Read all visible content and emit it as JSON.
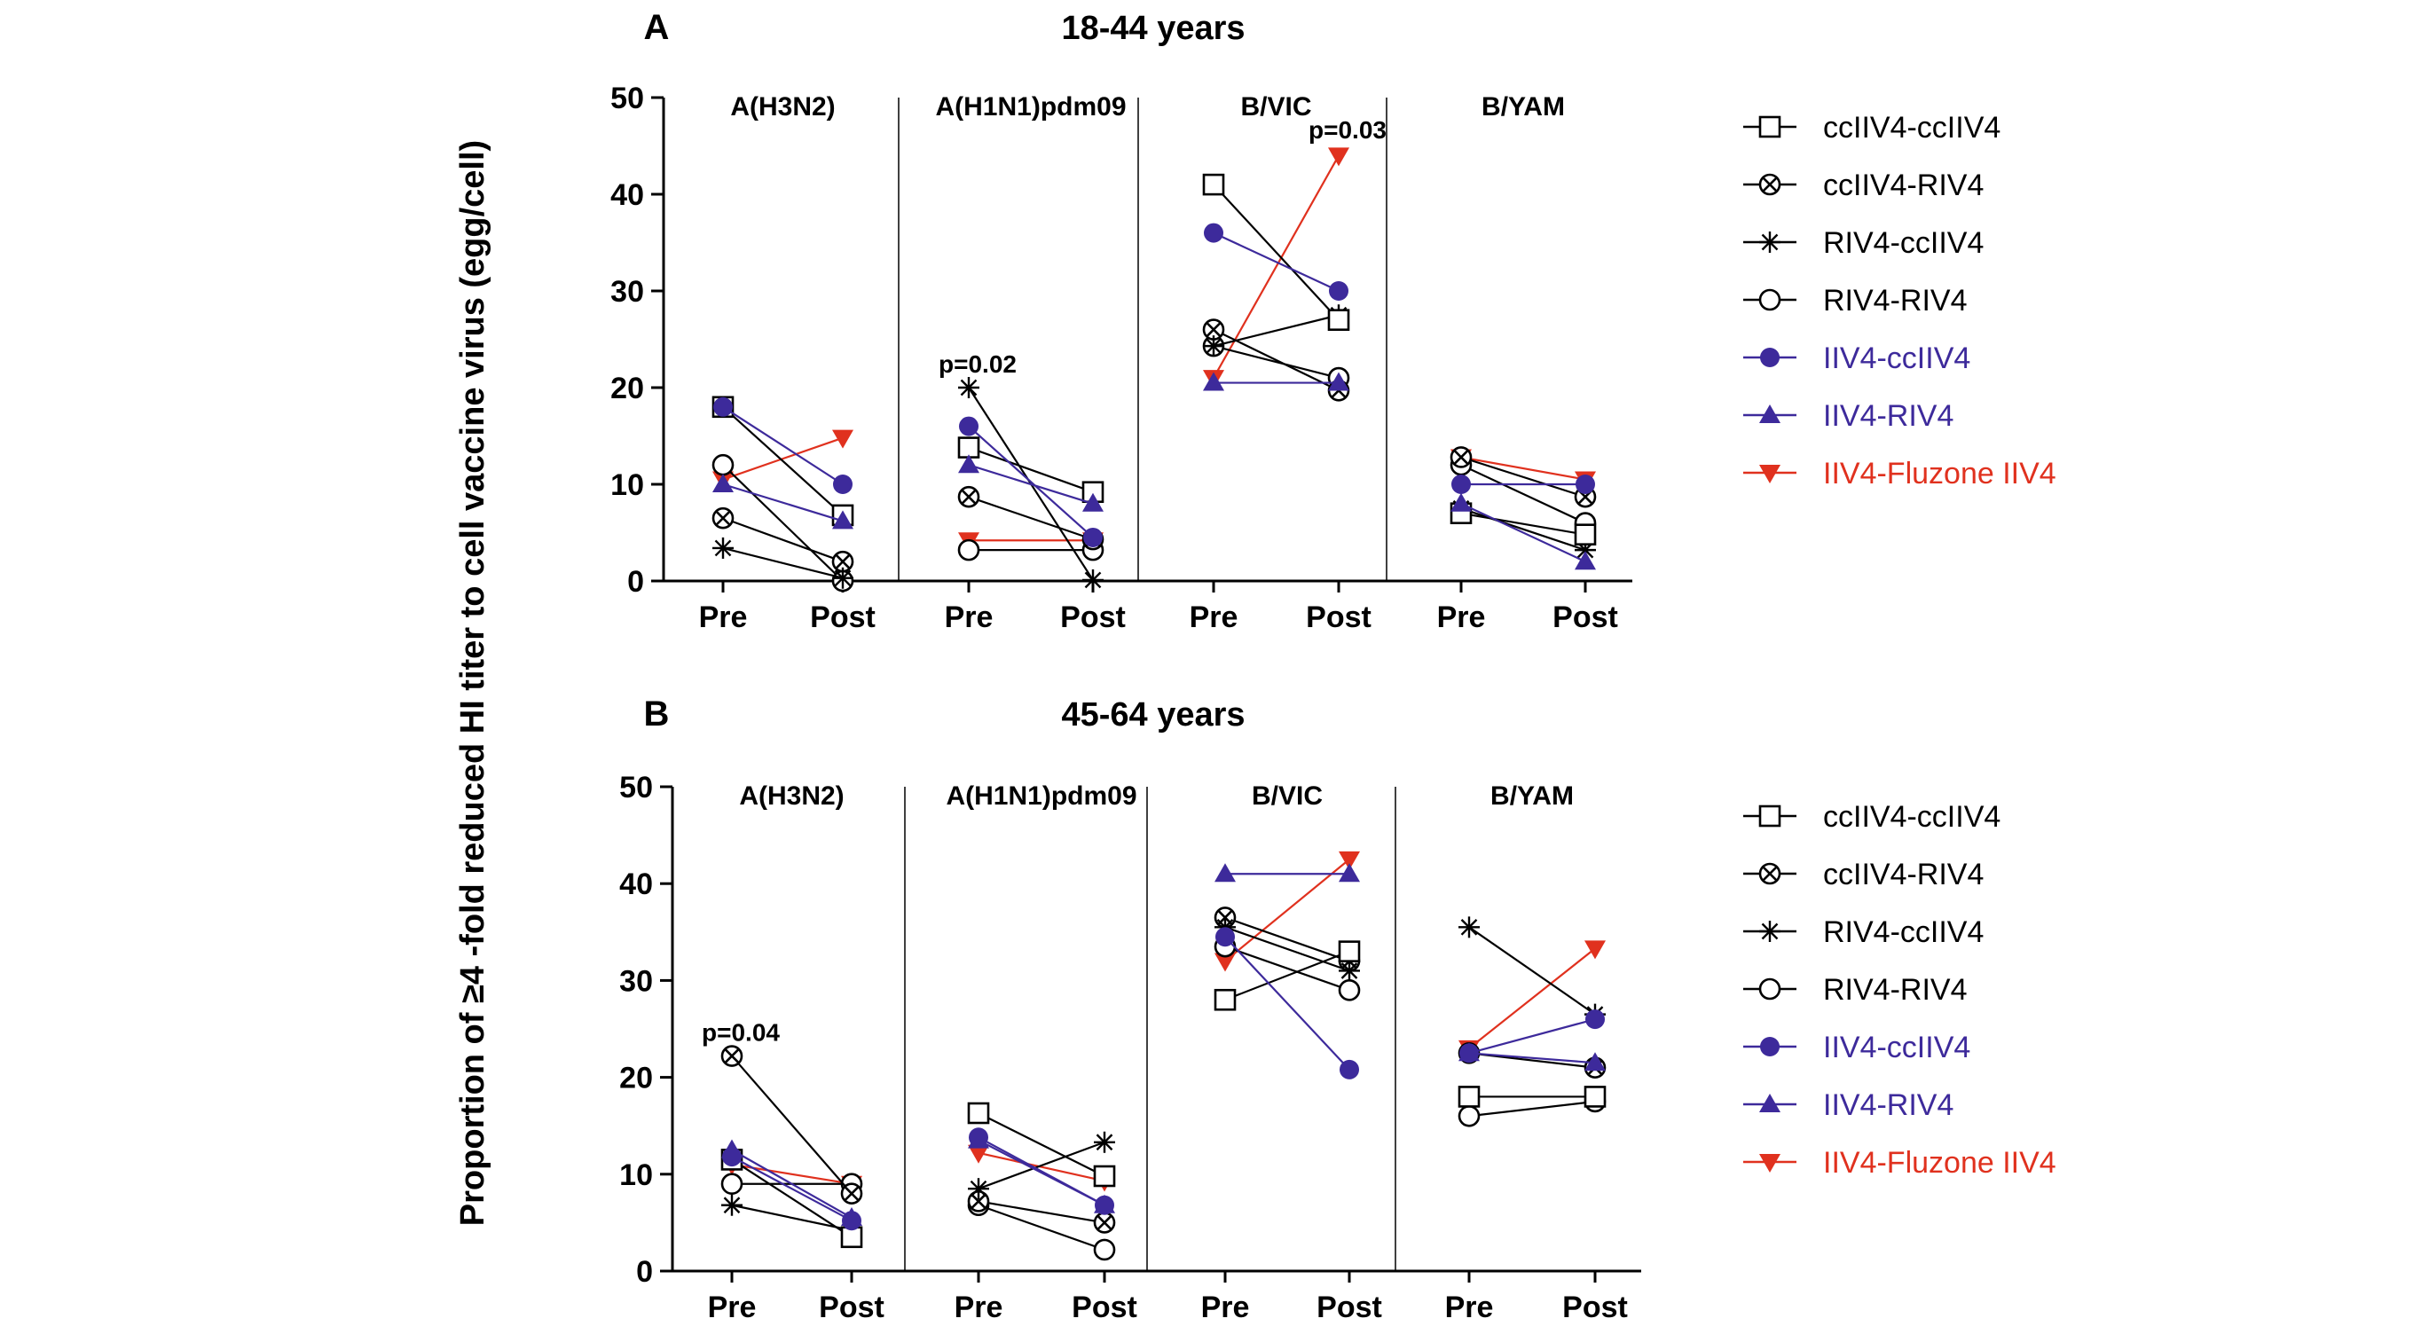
{
  "figure": {
    "ylabel": "Proportion of ≥4 -fold reduced HI titer to cell vaccine virus (egg/cell)"
  },
  "legend": [
    {
      "name": "ccIIV4-ccIIV4",
      "color": "#000000",
      "marker": "square-open"
    },
    {
      "name": "ccIIV4-RIV4",
      "color": "#000000",
      "marker": "circle-cross"
    },
    {
      "name": "RIV4-ccIIV4",
      "color": "#000000",
      "marker": "asterisk"
    },
    {
      "name": "RIV4-RIV4",
      "color": "#000000",
      "marker": "circle-open"
    },
    {
      "name": "IIV4-ccIIV4",
      "color": "#3D2A9B",
      "marker": "circle-filled"
    },
    {
      "name": "IIV4-RIV4",
      "color": "#3D2A9B",
      "marker": "triangle-up-filled"
    },
    {
      "name": "IIV4-Fluzone IIV4",
      "color": "#E0311E",
      "marker": "triangle-down-filled"
    }
  ],
  "chart_data": [
    {
      "type": "line",
      "panel_letter": "A",
      "title": "18-44 years",
      "ylim": [
        0,
        50
      ],
      "yticks": [
        0,
        10,
        20,
        30,
        40,
        50
      ],
      "x_categories": [
        "Pre",
        "Post"
      ],
      "groups": [
        {
          "name": "A(H3N2)",
          "series": {
            "ccIIV4-ccIIV4": [
              18,
              6.8
            ],
            "ccIIV4-RIV4": [
              6.5,
              2
            ],
            "RIV4-ccIIV4": [
              3.4,
              0.3
            ],
            "RIV4-RIV4": [
              12,
              0
            ],
            "IIV4-ccIIV4": [
              18,
              10
            ],
            "IIV4-RIV4": [
              10,
              6.2
            ],
            "IIV4-Fluzone IIV4": [
              10.5,
              14.8
            ]
          }
        },
        {
          "name": "A(H1N1)pdm09",
          "annotation": {
            "text": "p=0.02",
            "x": "Pre",
            "y": 22.3
          },
          "series": {
            "ccIIV4-ccIIV4": [
              13.8,
              9.2
            ],
            "ccIIV4-RIV4": [
              8.7,
              4.3
            ],
            "RIV4-ccIIV4": [
              20,
              0.1
            ],
            "RIV4-RIV4": [
              3.2,
              3.2
            ],
            "IIV4-ccIIV4": [
              16,
              4.5
            ],
            "IIV4-RIV4": [
              12,
              8
            ],
            "IIV4-Fluzone IIV4": [
              4.2,
              4.2
            ]
          }
        },
        {
          "name": "B/VIC",
          "annotation": {
            "text": "p=0.03",
            "x": "Post",
            "y": 46.5
          },
          "series": {
            "ccIIV4-ccIIV4": [
              41,
              27
            ],
            "ccIIV4-RIV4": [
              26,
              19.7
            ],
            "RIV4-ccIIV4": [
              24.3,
              27.5
            ],
            "RIV4-RIV4": [
              24.3,
              21
            ],
            "IIV4-ccIIV4": [
              36,
              30
            ],
            "IIV4-RIV4": [
              20.5,
              20.5
            ],
            "IIV4-Fluzone IIV4": [
              21,
              44
            ]
          }
        },
        {
          "name": "B/YAM",
          "series": {
            "ccIIV4-ccIIV4": [
              7,
              4.8
            ],
            "ccIIV4-RIV4": [
              12.8,
              8.7
            ],
            "RIV4-ccIIV4": [
              7.5,
              3.2
            ],
            "RIV4-RIV4": [
              12,
              6
            ],
            "IIV4-ccIIV4": [
              10,
              10
            ],
            "IIV4-RIV4": [
              8,
              2
            ],
            "IIV4-Fluzone IIV4": [
              12.8,
              10.5
            ]
          }
        }
      ]
    },
    {
      "type": "line",
      "panel_letter": "B",
      "title": "45-64 years",
      "ylim": [
        0,
        50
      ],
      "yticks": [
        0,
        10,
        20,
        30,
        40,
        50
      ],
      "x_categories": [
        "Pre",
        "Post"
      ],
      "groups": [
        {
          "name": "A(H3N2)",
          "annotation": {
            "text": "p=0.04",
            "x": "Pre",
            "y": 24.5
          },
          "series": {
            "ccIIV4-ccIIV4": [
              11.5,
              3.5
            ],
            "ccIIV4-RIV4": [
              22.2,
              8
            ],
            "RIV4-ccIIV4": [
              6.8,
              4.2
            ],
            "RIV4-RIV4": [
              9,
              9
            ],
            "IIV4-ccIIV4": [
              11.8,
              5.2
            ],
            "IIV4-RIV4": [
              12.5,
              5.5
            ],
            "IIV4-Fluzone IIV4": [
              11,
              9
            ]
          }
        },
        {
          "name": "A(H1N1)pdm09",
          "series": {
            "ccIIV4-ccIIV4": [
              16.3,
              9.8
            ],
            "ccIIV4-RIV4": [
              7.2,
              5
            ],
            "RIV4-ccIIV4": [
              8.5,
              13.3
            ],
            "RIV4-RIV4": [
              6.8,
              2.2
            ],
            "IIV4-ccIIV4": [
              13.8,
              6.8
            ],
            "IIV4-RIV4": [
              13.5,
              6.8
            ],
            "IIV4-Fluzone IIV4": [
              12.2,
              9.3
            ]
          }
        },
        {
          "name": "B/VIC",
          "series": {
            "ccIIV4-ccIIV4": [
              28,
              33
            ],
            "ccIIV4-RIV4": [
              36.5,
              32
            ],
            "RIV4-ccIIV4": [
              35.5,
              31
            ],
            "RIV4-RIV4": [
              33.5,
              29
            ],
            "IIV4-ccIIV4": [
              34.5,
              20.8
            ],
            "IIV4-RIV4": [
              41,
              41
            ],
            "IIV4-Fluzone IIV4": [
              32,
              42.5
            ]
          }
        },
        {
          "name": "B/YAM",
          "series": {
            "ccIIV4-ccIIV4": [
              18,
              18
            ],
            "ccIIV4-RIV4": [
              22.5,
              21
            ],
            "RIV4-ccIIV4": [
              35.5,
              26.5
            ],
            "RIV4-RIV4": [
              16,
              17.5
            ],
            "IIV4-ccIIV4": [
              22.5,
              26
            ],
            "IIV4-RIV4": [
              22.5,
              21.5
            ],
            "IIV4-Fluzone IIV4": [
              23,
              33.3
            ]
          }
        }
      ]
    }
  ]
}
